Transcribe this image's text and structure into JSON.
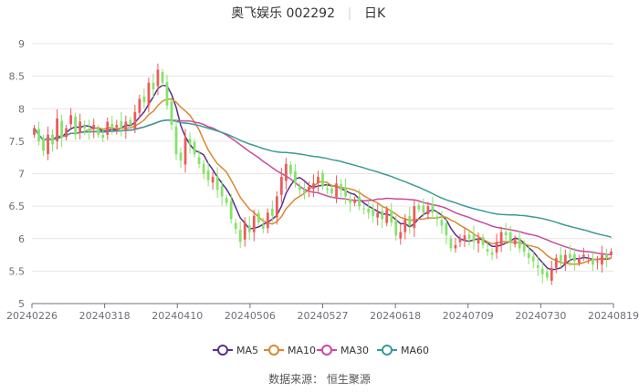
{
  "header": {
    "title": "奥飞娱乐 002292",
    "period": "日K"
  },
  "source": "数据来源： 恒生聚源",
  "chart_data": {
    "type": "candlestick",
    "y_ticks": [
      "5",
      "5.5",
      "6",
      "6.5",
      "7",
      "7.5",
      "8",
      "8.5",
      "9"
    ],
    "ylim": [
      5,
      9
    ],
    "x_labels": [
      "20240226",
      "20240318",
      "20240410",
      "20240506",
      "20240527",
      "20240618",
      "20240709",
      "20240730",
      "20240819"
    ],
    "colors": {
      "up": "#ec5a5a",
      "down": "#85e36a",
      "grid": "#e6e6e6",
      "axis": "#6e7079"
    },
    "legend": [
      {
        "name": "MA5",
        "color": "#5b2d8e"
      },
      {
        "name": "MA10",
        "color": "#d9882f"
      },
      {
        "name": "MA30",
        "color": "#c94a9f"
      },
      {
        "name": "MA60",
        "color": "#3a9a96"
      }
    ],
    "closes": [
      7.7,
      7.5,
      7.35,
      7.6,
      7.45,
      7.85,
      7.55,
      7.7,
      7.9,
      7.6,
      7.8,
      7.7,
      7.65,
      7.75,
      7.6,
      7.55,
      7.8,
      7.7,
      7.75,
      7.7,
      7.8,
      7.75,
      7.95,
      8.15,
      8.1,
      8.4,
      8.3,
      8.6,
      8.4,
      8.05,
      7.75,
      7.3,
      7.2,
      7.55,
      7.45,
      7.3,
      7.15,
      7.0,
      6.9,
      6.95,
      6.75,
      6.65,
      6.55,
      6.3,
      6.15,
      5.95,
      6.25,
      6.1,
      6.35,
      6.25,
      6.15,
      6.4,
      6.35,
      6.65,
      6.95,
      7.15,
      7.0,
      6.85,
      6.75,
      6.7,
      6.8,
      6.85,
      6.95,
      6.8,
      6.75,
      6.7,
      6.85,
      6.75,
      6.65,
      6.55,
      6.6,
      6.5,
      6.45,
      6.4,
      6.35,
      6.4,
      6.3,
      6.45,
      6.25,
      6.05,
      6.1,
      6.3,
      6.2,
      6.5,
      6.45,
      6.4,
      6.5,
      6.4,
      6.3,
      6.2,
      6.05,
      5.85,
      5.9,
      6.0,
      6.05,
      6.0,
      5.95,
      6.0,
      5.9,
      5.8,
      5.75,
      5.95,
      6.1,
      6.05,
      5.95,
      6.0,
      5.85,
      5.8,
      5.7,
      5.65,
      5.55,
      5.45,
      5.4,
      5.55,
      5.7,
      5.65,
      5.75,
      5.7,
      5.65,
      5.7,
      5.75,
      5.7,
      5.6,
      5.65,
      5.75,
      5.7,
      5.8
    ]
  }
}
